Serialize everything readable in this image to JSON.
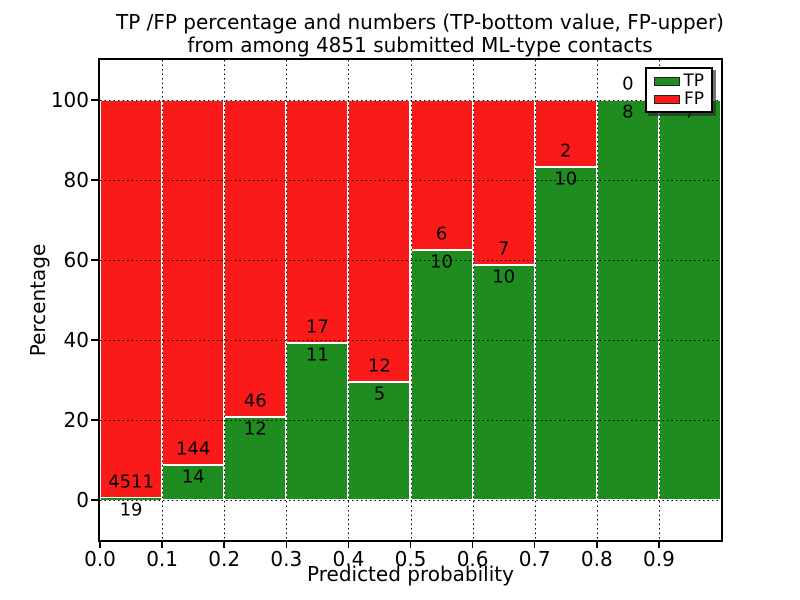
{
  "figure": {
    "title_line1": "TP /FP percentage and numbers (TP-bottom value, FP-upper)",
    "title_line2": "from among 4851 submitted ML-type contacts"
  },
  "chart_data": {
    "type": "bar",
    "subtype": "stacked-100pct-histogram",
    "title": "TP /FP percentage and numbers (TP-bottom value, FP-upper) from among 4851 submitted ML-type contacts",
    "xlabel": "Predicted probability",
    "ylabel": "Percentage",
    "total_contacts": 4851,
    "bin_edges": [
      0.0,
      0.1,
      0.2,
      0.3,
      0.4,
      0.5,
      0.6,
      0.7,
      0.8,
      0.9,
      1.0
    ],
    "xlim": [
      0.0,
      1.0
    ],
    "ylim": [
      -10,
      110
    ],
    "xtick_labels": [
      "0.0",
      "0.1",
      "0.2",
      "0.3",
      "0.4",
      "0.5",
      "0.6",
      "0.7",
      "0.8",
      "0.9"
    ],
    "ytick_values": [
      0,
      20,
      40,
      60,
      80,
      100
    ],
    "grid": true,
    "grid_style": "dotted",
    "series": [
      {
        "name": "TP",
        "color": "#1e8c1e",
        "counts": [
          19,
          14,
          12,
          11,
          5,
          10,
          10,
          10,
          8,
          7
        ],
        "percentages": [
          0.42,
          8.86,
          20.69,
          39.29,
          29.41,
          62.5,
          58.82,
          83.33,
          100,
          100
        ]
      },
      {
        "name": "FP",
        "color": "#fb1a1a",
        "counts": [
          4511,
          144,
          46,
          17,
          12,
          6,
          7,
          2,
          0,
          0
        ],
        "percentages": [
          99.58,
          91.14,
          79.31,
          60.71,
          70.59,
          37.5,
          41.18,
          16.67,
          0,
          0
        ]
      }
    ],
    "bar_labels": {
      "tp": [
        "19",
        "14",
        "12",
        "11",
        "5",
        "10",
        "10",
        "10",
        "8",
        "7"
      ],
      "fp": [
        "4511",
        "144",
        "46",
        "17",
        "12",
        "6",
        "7",
        "2",
        "0",
        ""
      ]
    },
    "legend": {
      "position": "upper-right",
      "entries": [
        {
          "label": "TP",
          "color": "#1e8c1e"
        },
        {
          "label": "FP",
          "color": "#fb1a1a"
        }
      ]
    }
  }
}
